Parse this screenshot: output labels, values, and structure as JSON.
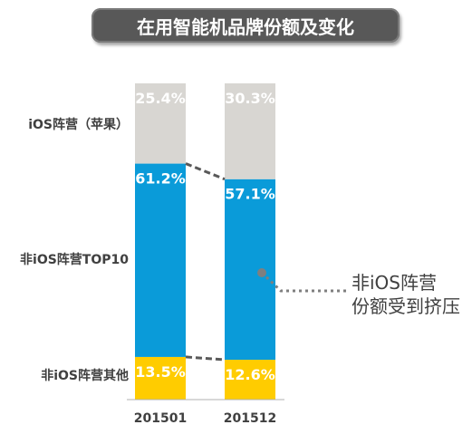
{
  "chart_data": {
    "type": "bar",
    "stacked": true,
    "title": "在用智能机品牌份额及变化",
    "categories": [
      "201501",
      "201512"
    ],
    "series": [
      {
        "name": "非iOS阵营其他",
        "values": [
          13.5,
          12.6
        ],
        "labels": [
          "13.5%",
          "12.6%"
        ],
        "color": "#FFCC00"
      },
      {
        "name": "非iOS阵营TOP10",
        "values": [
          61.2,
          57.1
        ],
        "labels": [
          "61.2%",
          "57.1%"
        ],
        "color": "#0A9BD9"
      },
      {
        "name": "iOS阵营（苹果）",
        "values": [
          25.4,
          30.3
        ],
        "labels": [
          "25.4%",
          "30.3%"
        ],
        "color": "#D8D6D2"
      }
    ],
    "ylim": [
      0,
      100
    ],
    "legend": "left",
    "annotation": [
      "非iOS阵营",
      "份额受到挤压"
    ]
  }
}
